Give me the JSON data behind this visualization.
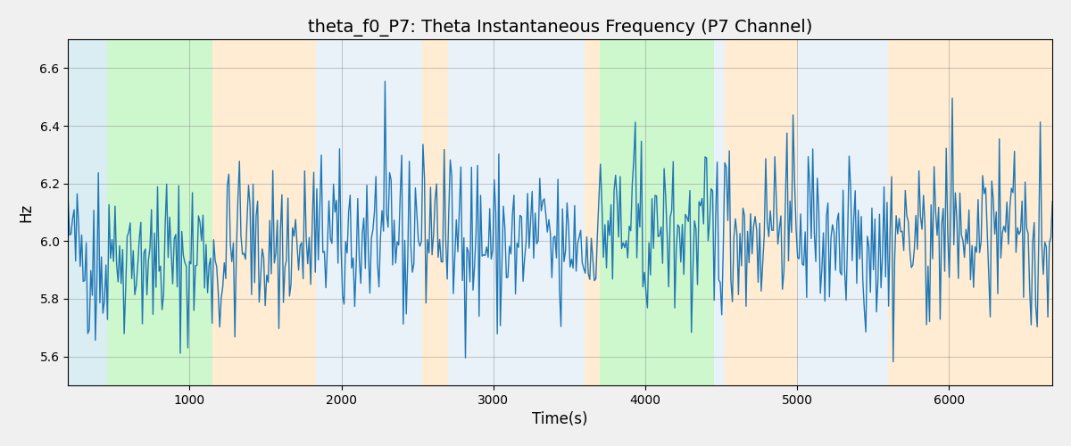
{
  "title": "theta_f0_P7: Theta Instantaneous Frequency (P7 Channel)",
  "xlabel": "Time(s)",
  "ylabel": "Hz",
  "ylim": [
    5.5,
    6.7
  ],
  "xlim": [
    200,
    6680
  ],
  "background_bands": [
    {
      "xmin": 200,
      "xmax": 460,
      "color": "#add8e6",
      "alpha": 0.45
    },
    {
      "xmin": 460,
      "xmax": 1150,
      "color": "#90ee90",
      "alpha": 0.45
    },
    {
      "xmin": 1150,
      "xmax": 1830,
      "color": "#ffddb0",
      "alpha": 0.55
    },
    {
      "xmin": 1830,
      "xmax": 2530,
      "color": "#cce0f0",
      "alpha": 0.4
    },
    {
      "xmin": 2530,
      "xmax": 2700,
      "color": "#ffddb0",
      "alpha": 0.55
    },
    {
      "xmin": 2700,
      "xmax": 3600,
      "color": "#cce0f0",
      "alpha": 0.4
    },
    {
      "xmin": 3600,
      "xmax": 3700,
      "color": "#ffddb0",
      "alpha": 0.55
    },
    {
      "xmin": 3700,
      "xmax": 4450,
      "color": "#90ee90",
      "alpha": 0.45
    },
    {
      "xmin": 4450,
      "xmax": 4520,
      "color": "#cce0f0",
      "alpha": 0.4
    },
    {
      "xmin": 4520,
      "xmax": 5000,
      "color": "#ffddb0",
      "alpha": 0.55
    },
    {
      "xmin": 5000,
      "xmax": 5600,
      "color": "#cce0f0",
      "alpha": 0.4
    },
    {
      "xmin": 5600,
      "xmax": 6100,
      "color": "#ffddb0",
      "alpha": 0.55
    },
    {
      "xmin": 6100,
      "xmax": 6680,
      "color": "#ffddb0",
      "alpha": 0.55
    }
  ],
  "line_color": "#1f77b4",
  "line_width": 1.0,
  "grid": true,
  "title_fontsize": 14,
  "axis_fontsize": 12,
  "seed": 42,
  "n_points": 650,
  "mean_freq": 6.0,
  "noise_std": 0.13,
  "xticks": [
    1000,
    2000,
    3000,
    4000,
    5000,
    6000
  ],
  "yticks": [
    5.6,
    5.8,
    6.0,
    6.2,
    6.4,
    6.6
  ],
  "figure_facecolor": "#f0f0f0",
  "axes_facecolor": "#ffffff"
}
